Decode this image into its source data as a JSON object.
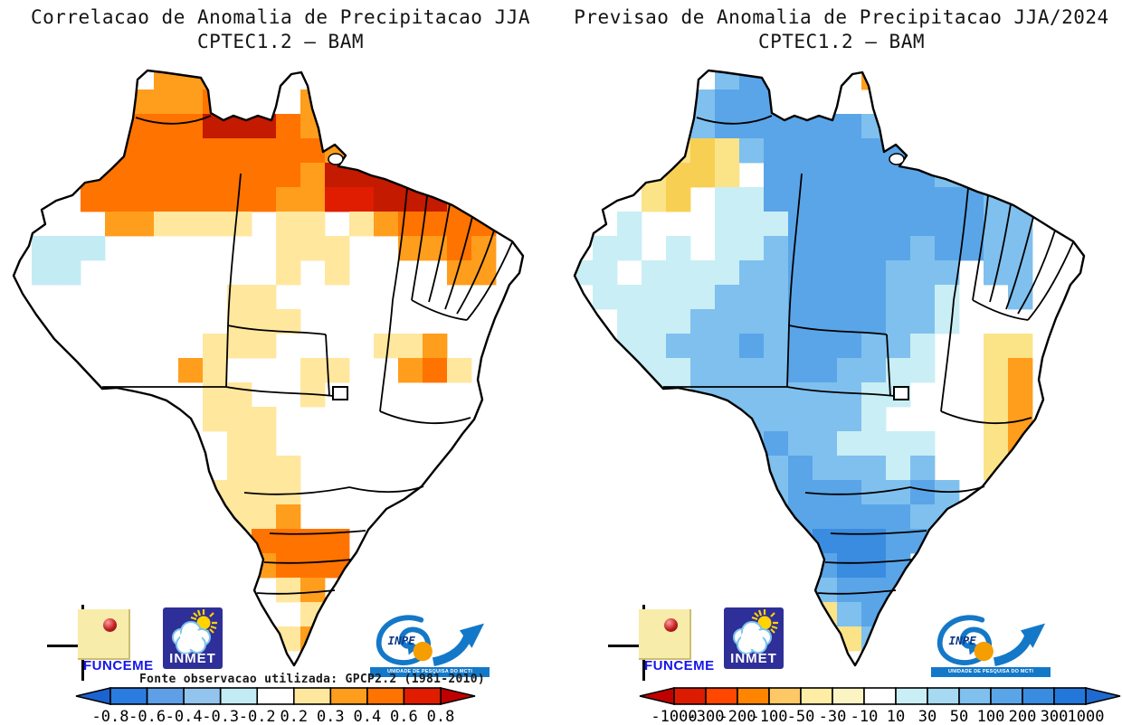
{
  "left_panel": {
    "note": "Fonte observacao utilizada: GPCP2.2 (1981-2010)"
  },
  "logos": {
    "funceme": {
      "label": "FUNCEME",
      "text_color": "#1616ea",
      "note_color": "#f7ecaa"
    },
    "inmet": {
      "label": "INMET",
      "bg_color": "#2f2f99",
      "text_color": "#ffffff"
    },
    "inpe": {
      "label": "INPE",
      "banner": "UNIDADE DE PESQUISA DO MCTI",
      "blue": "#1478c8",
      "orange": "#f59e00"
    }
  },
  "chart_data": [
    {
      "type": "heatmap",
      "map": "Brazil states choropleth grid",
      "title": "Correlacao de Anomalia de Precipitacao JJA",
      "subtitle": "CPTEC1.2 – BAM",
      "legend_position": "bottom",
      "legend_values": [
        "-0.8",
        "-0.6",
        "-0.4",
        "-0.3",
        "-0.2",
        "0.2",
        "0.3",
        "0.4",
        "0.6",
        "0.8"
      ],
      "legend_colors": [
        "#2b7ce0",
        "#5f9fe8",
        "#92c4ee",
        "#c2ebf4",
        "#ffffff",
        "#ffe79e",
        "#ff9d1c",
        "#ff7300",
        "#e01d00"
      ],
      "arrow_colors": [
        "#1a63d0",
        "#c00000"
      ],
      "palette": {
        "W": "#ffffff",
        "L": "#c2ebf4",
        "y": "#ffe79e",
        "o": "#ff9d1c",
        "O": "#ff7300",
        "r": "#e01d00",
        "R": "#c41a00"
      },
      "grid_rows": [
        "......ooo...W........",
        ".....oooOo..o........",
        "....oOOORRROoy.......",
        "...oOOOOOOOOOoyW.....",
        "..yOOOOOOOOOoRRRRRR..",
        ".WWOOOOOOOOoorrRRROo.",
        "WWWWooyyyyWyyWyoOOOO.",
        "WLLLWWWWWWWyyyWWooOo.",
        "WLLWWWWWWWWyWyWWWWoo.",
        "WWWWWWWWWyyWWWWWWWW..",
        ".WWWWWWWWyyyWWWWWWW..",
        ".WWWWWWWyyyWWWWyyoW..",
        "..WWWWWoyWWWyyWWoOyW.",
        "...WWWWWyyWWyWWWWW...",
        "....WWWWyyyWWWWWWW...",
        ".....WWWWyyWWWWWW....",
        "......WWWyyyWWWWW....",
        ".......WyyyyWWWW.....",
        ".......WyyyoWWW......",
        "........yyOOOOW......",
        ".........yoOOO.......",
        "..........Wyo........",
        "..........WWy........",
        "...........yo........"
      ]
    },
    {
      "type": "heatmap",
      "map": "Brazil states choropleth grid",
      "title": "Previsao de Anomalia de Precipitacao JJA/2024",
      "subtitle": "CPTEC1.2 – BAM",
      "legend_position": "bottom",
      "legend_values": [
        "-1000",
        "-300",
        "-200",
        "-100",
        "-50",
        "-30",
        "-10",
        "10",
        "30",
        "50",
        "100",
        "200",
        "300",
        "1000"
      ],
      "legend_colors": [
        "#dc1c00",
        "#ff4700",
        "#ff8400",
        "#ffc866",
        "#ffeda6",
        "#fdf4c4",
        "#ffffff",
        "#c9eef5",
        "#a5daf2",
        "#7fc0ee",
        "#5aa5e8",
        "#3a8ce0",
        "#2477da"
      ],
      "arrow_colors": [
        "#c00000",
        "#1e6ad0"
      ],
      "palette": {
        "W": "#ffffff",
        "c": "#c9eef5",
        "b": "#7fc0ee",
        "B": "#5aa5e8",
        "D": "#3a8ce0",
        "E": "#2477da",
        "y": "#fbe388",
        "Y": "#f7cf52",
        "o": "#ff9d1c"
      },
      "grid_rows": [
        "......bBB...o........",
        ".....bBBBb..Wb.......",
        "....bbBBBBBBbb.......",
        "...WyYybBBBBBBb......",
        "..WyYYyWBBBBBBBbbb...",
        ".WWyYWccBBBBBBBBBbb..",
        "WWcWWWcccBBBBBBBBbb..",
        "WccWcWccbBBBBBbBBbb..",
        "ccWccccbbBBBBbbbWbb..",
        "WcccccbbbBBBBbbcWWb..",
        "..cccbbbbBBBBbbcWWWW.",
        "..ccbbbBbBBBbbcWWyyW.",
        "..cccbbbbBBbbccWWyoW.",
        "...ccbbbbbbbccWWWyoW.",
        "....cbbbbbbbcWWWWyoW.",
        ".....cbbBbbccccWWyoW.",
        "......cbbBbbbcbWWyW..",
        ".......bbBBBbbBbWW...",
        ".......bBBBBBBbb.....",
        "........bBDDDBB......",
        ".........bBDDB.......",
        "..........bBBB.......",
        "..........ybBb.......",
        "...........yb........"
      ]
    }
  ]
}
